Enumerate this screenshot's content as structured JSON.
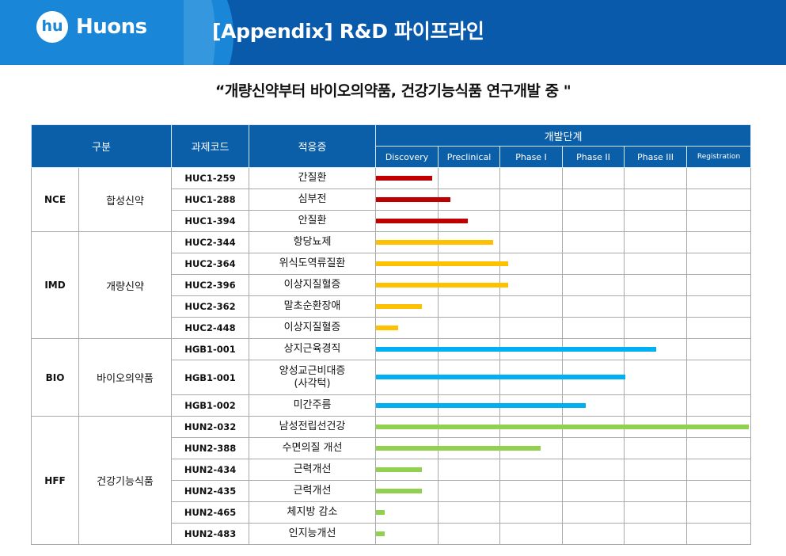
{
  "header": {
    "logo_mark": "hu",
    "logo_text": "Huons",
    "title": "[Appendix] R&D 파이프라인"
  },
  "subtitle": "“개량신약부터 바이오의약품, 건강기능식품 연구개발 중 \"",
  "table": {
    "headers": {
      "category": "구분",
      "code": "과제코드",
      "indication": "적응증",
      "stage": "개발단계",
      "phases": [
        "Discovery",
        "Preclinical",
        "Phase I",
        "Phase II",
        "Phase III",
        "Registration"
      ]
    },
    "groups": [
      {
        "code": "NCE",
        "name": "합성신약",
        "color": "#c00000",
        "rows": [
          {
            "project": "HUC1-259",
            "indication": "간질환",
            "progress_phases": 0.9
          },
          {
            "project": "HUC1-288",
            "indication": "심부전",
            "progress_phases": 1.2
          },
          {
            "project": "HUC1-394",
            "indication": "안질환",
            "progress_phases": 1.48
          }
        ]
      },
      {
        "code": "IMD",
        "name": "개량신약",
        "color": "#ffc000",
        "rows": [
          {
            "project": "HUC2-344",
            "indication": "항당뇨제",
            "progress_phases": 1.88
          },
          {
            "project": "HUC2-364",
            "indication": "위식도역류질환",
            "progress_phases": 2.12
          },
          {
            "project": "HUC2-396",
            "indication": "이상지질혈증",
            "progress_phases": 2.12
          },
          {
            "project": "HUC2-362",
            "indication": "말초순환장애",
            "progress_phases": 0.74
          },
          {
            "project": "HUC2-448",
            "indication": "이상지질혈증",
            "progress_phases": 0.35
          }
        ]
      },
      {
        "code": "BIO",
        "name": "바이오의약품",
        "color": "#00b0f0",
        "rows": [
          {
            "project": "HGB1-001",
            "indication": "상지근육경직",
            "progress_phases": 4.5
          },
          {
            "project": "HGB1-001",
            "indication": "양성교근비대증",
            "indication_line2": "(사각턱)",
            "progress_phases": 4.0
          },
          {
            "project": "HGB1-002",
            "indication": "미간주름",
            "progress_phases": 3.37
          }
        ]
      },
      {
        "code": "HFF",
        "name": "건강기능식품",
        "color": "#92d050",
        "rows": [
          {
            "project": "HUN2-032",
            "indication": "남성전립선건강",
            "progress_phases": 6.0
          },
          {
            "project": "HUN2-388",
            "indication": "수면의질 개선",
            "progress_phases": 2.64
          },
          {
            "project": "HUN2-434",
            "indication": "근력개선",
            "progress_phases": 0.74
          },
          {
            "project": "HUN2-435",
            "indication": "근력개선",
            "progress_phases": 0.74
          },
          {
            "project": "HUN2-465",
            "indication": "체지방 감소",
            "progress_phases": 0.14
          },
          {
            "project": "HUN2-483",
            "indication": "인지능개선",
            "progress_phases": 0.14
          }
        ]
      }
    ]
  }
}
